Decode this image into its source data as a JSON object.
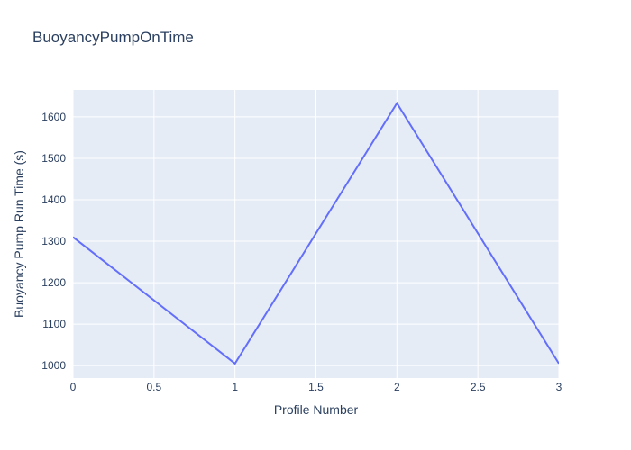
{
  "chart_data": {
    "type": "line",
    "title": "BuoyancyPumpOnTime",
    "xlabel": "Profile Number",
    "ylabel": "Buoyancy Pump Run Time (s)",
    "x": [
      0,
      1,
      2,
      3
    ],
    "y": [
      1310,
      1005,
      1633,
      1005
    ],
    "series_name": "BuoyancyPumpOnTime",
    "x_ticks": [
      0,
      0.5,
      1,
      1.5,
      2,
      2.5,
      3
    ],
    "x_tick_labels": [
      "0",
      "0.5",
      "1",
      "1.5",
      "2",
      "2.5",
      "3"
    ],
    "y_ticks": [
      1000,
      1100,
      1200,
      1300,
      1400,
      1500,
      1600
    ],
    "y_tick_labels": [
      "1000",
      "1100",
      "1200",
      "1300",
      "1400",
      "1500",
      "1600"
    ],
    "xlim": [
      0,
      3
    ],
    "ylim": [
      970,
      1665
    ],
    "grid": true,
    "legend_visible": false,
    "colors": {
      "line": "#636efa",
      "plot_bg": "#e5ecf6",
      "paper_bg": "#ffffff",
      "grid": "#ffffff",
      "text": "#2a3f5f"
    }
  }
}
